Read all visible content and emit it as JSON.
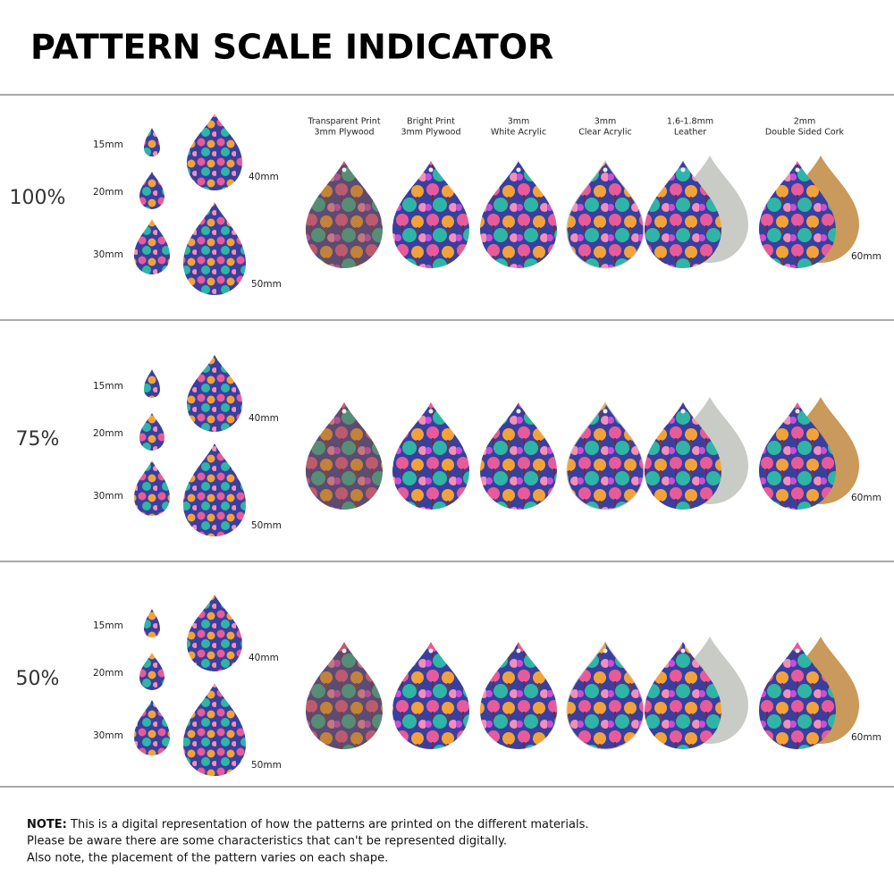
{
  "title": "PATTERN SCALE INDICATOR",
  "materials": [
    {
      "line1": "Transparent Print",
      "line2": "3mm Plywood"
    },
    {
      "line1": "Bright Print",
      "line2": "3mm Plywood"
    },
    {
      "line1": "3mm",
      "line2": "White Acrylic"
    },
    {
      "line1": "3mm",
      "line2": "Clear Acrylic"
    },
    {
      "line1": "1.6-1.8mm",
      "line2": "Leather"
    },
    {
      "line1": "2mm",
      "line2": "Double Sided Cork"
    }
  ],
  "rows": [
    {
      "scale": "100%",
      "sizes": [
        "15mm",
        "20mm",
        "30mm",
        "40mm",
        "50mm"
      ],
      "large_size": "60mm"
    },
    {
      "scale": "75%",
      "sizes": [
        "15mm",
        "20mm",
        "30mm",
        "40mm",
        "50mm"
      ],
      "large_size": "60mm"
    },
    {
      "scale": "50%",
      "sizes": [
        "15mm",
        "20mm",
        "30mm",
        "40mm",
        "50mm"
      ],
      "large_size": "60mm"
    }
  ],
  "note": {
    "label": "NOTE:",
    "lines": [
      "This is a digital representation of how the patterns are printed on the different materials.",
      "Please be aware there are some characteristics that can't be represented digitally.",
      "Also note, the placement of the pattern varies on each shape."
    ]
  }
}
